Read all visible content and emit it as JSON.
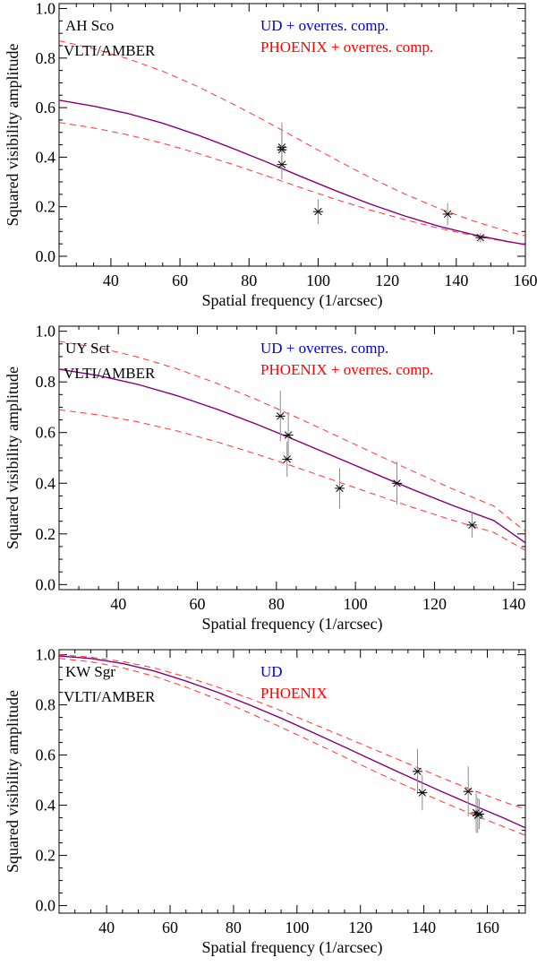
{
  "colors": {
    "axis": "#000000",
    "ud_model": "#0000cc",
    "phoenix_model": "#ff0000",
    "combined_curve": "#800080",
    "bounds": "#ff3333",
    "error_bar": "#8a8a8a",
    "data_marker": "#000000"
  },
  "chart_data": [
    {
      "type": "line",
      "star": "AH Sco",
      "instrument": "VLTI/AMBER",
      "legend": [
        {
          "label": "UD + overres. comp.",
          "color": "#0000cc"
        },
        {
          "label": "PHOENIX + overres. comp.",
          "color": "#ff0000"
        }
      ],
      "xlabel": "Spatial frequency (1/arcsec)",
      "ylabel": "Squared visibility amplitude",
      "xlim": [
        25,
        160
      ],
      "ylim": [
        -0.04,
        1.02
      ],
      "xticks": [
        40,
        60,
        80,
        100,
        120,
        140,
        160
      ],
      "yticks": [
        0.0,
        0.2,
        0.4,
        0.6,
        0.8,
        1.0
      ],
      "ytick_labels": [
        "0.0",
        "0.2",
        "0.4",
        "0.6",
        "0.8",
        "1.0"
      ],
      "model": {
        "x": [
          25,
          35,
          45,
          55,
          65,
          75,
          85,
          95,
          105,
          115,
          125,
          135,
          145,
          155,
          160
        ],
        "y": [
          0.63,
          0.606,
          0.576,
          0.537,
          0.49,
          0.437,
          0.381,
          0.322,
          0.265,
          0.211,
          0.163,
          0.121,
          0.087,
          0.059,
          0.047
        ]
      },
      "upper_bound": {
        "x": [
          25,
          35,
          45,
          55,
          65,
          75,
          85,
          95,
          105,
          115,
          125,
          135,
          145,
          155,
          160
        ],
        "y": [
          0.87,
          0.838,
          0.797,
          0.747,
          0.686,
          0.617,
          0.544,
          0.467,
          0.391,
          0.318,
          0.252,
          0.193,
          0.142,
          0.1,
          0.082
        ]
      },
      "lower_bound": {
        "x": [
          25,
          35,
          45,
          55,
          65,
          75,
          85,
          95,
          105,
          115,
          125,
          135,
          145,
          155,
          160
        ],
        "y": [
          0.54,
          0.518,
          0.49,
          0.456,
          0.416,
          0.372,
          0.325,
          0.277,
          0.23,
          0.187,
          0.148,
          0.113,
          0.083,
          0.058,
          0.048
        ]
      },
      "points": [
        {
          "x": 89.5,
          "y": 0.44,
          "err": 0.1
        },
        {
          "x": 89.5,
          "y": 0.43,
          "err": 0.07
        },
        {
          "x": 89.5,
          "y": 0.37,
          "err": 0.06
        },
        {
          "x": 100.0,
          "y": 0.18,
          "err": 0.05
        },
        {
          "x": 137.5,
          "y": 0.17,
          "err": 0.045
        },
        {
          "x": 147.0,
          "y": 0.075,
          "err": 0.02
        }
      ]
    },
    {
      "type": "line",
      "star": "UY Sct",
      "instrument": "VLTI/AMBER",
      "legend": [
        {
          "label": "UD + overres. comp.",
          "color": "#0000cc"
        },
        {
          "label": "PHOENIX + overres. comp.",
          "color": "#ff0000"
        }
      ],
      "xlabel": "Spatial frequency (1/arcsec)",
      "ylabel": "Squared visibility amplitude",
      "xlim": [
        25,
        143
      ],
      "ylim": [
        -0.02,
        1.02
      ],
      "xticks": [
        40,
        60,
        80,
        100,
        120,
        140
      ],
      "yticks": [
        0.0,
        0.2,
        0.4,
        0.6,
        0.8,
        1.0
      ],
      "ytick_labels": [
        "0.0",
        "0.2",
        "0.4",
        "0.6",
        "0.8",
        "1.0"
      ],
      "model": {
        "x": [
          25,
          35,
          45,
          55,
          65,
          75,
          85,
          95,
          105,
          115,
          125,
          135,
          143
        ],
        "y": [
          0.85,
          0.825,
          0.79,
          0.745,
          0.692,
          0.633,
          0.569,
          0.503,
          0.437,
          0.372,
          0.31,
          0.253,
          0.165
        ]
      },
      "upper_bound": {
        "x": [
          25,
          35,
          45,
          55,
          65,
          75,
          85,
          95,
          105,
          115,
          125,
          135,
          143
        ],
        "y": [
          0.96,
          0.935,
          0.898,
          0.851,
          0.794,
          0.73,
          0.661,
          0.589,
          0.516,
          0.444,
          0.375,
          0.31,
          0.21
        ]
      },
      "lower_bound": {
        "x": [
          25,
          35,
          45,
          55,
          65,
          75,
          85,
          95,
          105,
          115,
          125,
          135,
          143
        ],
        "y": [
          0.69,
          0.67,
          0.642,
          0.606,
          0.563,
          0.515,
          0.463,
          0.409,
          0.355,
          0.302,
          0.252,
          0.206,
          0.135
        ]
      },
      "points": [
        {
          "x": 81.0,
          "y": 0.665,
          "err": 0.1
        },
        {
          "x": 83.0,
          "y": 0.59,
          "err": 0.09
        },
        {
          "x": 82.7,
          "y": 0.495,
          "err": 0.07
        },
        {
          "x": 96.0,
          "y": 0.38,
          "err": 0.08
        },
        {
          "x": 110.5,
          "y": 0.4,
          "err": 0.085
        },
        {
          "x": 129.5,
          "y": 0.235,
          "err": 0.05
        }
      ]
    },
    {
      "type": "line",
      "star": "KW Sgr",
      "instrument": "VLTI/AMBER",
      "legend": [
        {
          "label": "UD",
          "color": "#0000cc"
        },
        {
          "label": "PHOENIX",
          "color": "#ff0000"
        }
      ],
      "xlabel": "Spatial frequency (1/arcsec)",
      "ylabel": "Squared visibility amplitude",
      "xlim": [
        25,
        172
      ],
      "ylim": [
        -0.03,
        1.02
      ],
      "xticks": [
        40,
        60,
        80,
        100,
        120,
        140,
        160
      ],
      "yticks": [
        0.0,
        0.2,
        0.4,
        0.6,
        0.8,
        1.0
      ],
      "ytick_labels": [
        "0.0",
        "0.2",
        "0.4",
        "0.6",
        "0.8",
        "1.0"
      ],
      "model": {
        "x": [
          25,
          35,
          45,
          55,
          65,
          75,
          85,
          95,
          105,
          115,
          125,
          135,
          145,
          155,
          165,
          172
        ],
        "y": [
          0.995,
          0.985,
          0.965,
          0.935,
          0.895,
          0.85,
          0.8,
          0.747,
          0.69,
          0.632,
          0.573,
          0.515,
          0.458,
          0.403,
          0.35,
          0.31
        ]
      },
      "upper_bound": {
        "x": [
          25,
          35,
          45,
          55,
          65,
          75,
          85,
          95,
          105,
          115,
          125,
          135,
          145,
          155,
          165,
          172
        ],
        "y": [
          1.0,
          0.99,
          0.973,
          0.947,
          0.912,
          0.871,
          0.826,
          0.777,
          0.725,
          0.672,
          0.619,
          0.566,
          0.513,
          0.462,
          0.414,
          0.385
        ]
      },
      "lower_bound": {
        "x": [
          25,
          35,
          45,
          55,
          65,
          75,
          85,
          95,
          105,
          115,
          125,
          135,
          145,
          155,
          165,
          172
        ],
        "y": [
          0.985,
          0.972,
          0.948,
          0.914,
          0.871,
          0.822,
          0.768,
          0.711,
          0.652,
          0.592,
          0.532,
          0.474,
          0.418,
          0.365,
          0.315,
          0.28
        ]
      },
      "points": [
        {
          "x": 138.0,
          "y": 0.535,
          "err": 0.09
        },
        {
          "x": 139.5,
          "y": 0.45,
          "err": 0.07
        },
        {
          "x": 154.0,
          "y": 0.455,
          "err": 0.1
        },
        {
          "x": 156.5,
          "y": 0.37,
          "err": 0.08
        },
        {
          "x": 157.0,
          "y": 0.36,
          "err": 0.07
        },
        {
          "x": 157.5,
          "y": 0.365,
          "err": 0.06
        }
      ]
    }
  ]
}
